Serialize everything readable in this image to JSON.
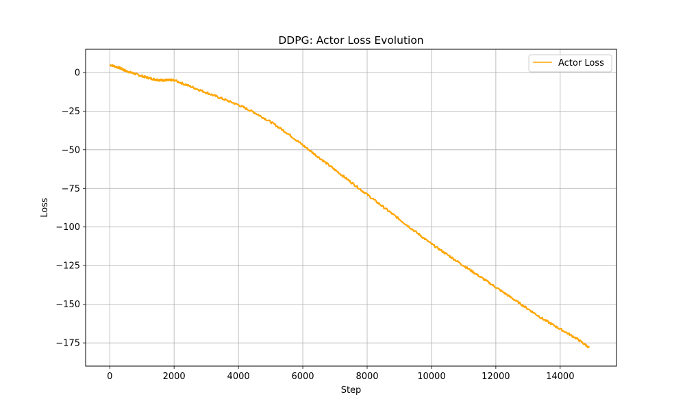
{
  "chart_data": {
    "type": "line",
    "title": "DDPG: Actor Loss Evolution",
    "xlabel": "Step",
    "ylabel": "Loss",
    "xlim": [
      -750,
      15750
    ],
    "ylim": [
      -190,
      15
    ],
    "x_ticks": [
      0,
      2000,
      4000,
      6000,
      8000,
      10000,
      12000,
      14000
    ],
    "y_ticks": [
      0,
      -25,
      -50,
      -75,
      -100,
      -125,
      -150,
      -175
    ],
    "x_tick_labels": [
      "0",
      "2000",
      "4000",
      "6000",
      "8000",
      "10000",
      "12000",
      "14000"
    ],
    "y_tick_labels": [
      "0",
      "−25",
      "−50",
      "−75",
      "−100",
      "−125",
      "−150",
      "−175"
    ],
    "grid": true,
    "legend_position": "upper right",
    "series": [
      {
        "name": "Actor Loss",
        "color": "#ffa500",
        "x": [
          0,
          300,
          500,
          800,
          1100,
          1400,
          1600,
          1800,
          2000,
          2500,
          3000,
          3500,
          4000,
          4500,
          5000,
          5500,
          6000,
          6500,
          7000,
          7500,
          8000,
          8500,
          9000,
          9500,
          10000,
          10500,
          11000,
          11500,
          12000,
          12500,
          13000,
          13500,
          14000,
          14500,
          14900
        ],
        "y": [
          5,
          3,
          1,
          -1,
          -3,
          -4.5,
          -5,
          -5,
          -5,
          -9,
          -13,
          -17,
          -21,
          -26,
          -32,
          -39,
          -47,
          -55,
          -63,
          -71,
          -79,
          -87,
          -95,
          -103,
          -111,
          -118,
          -125,
          -132,
          -139,
          -146,
          -153,
          -160,
          -166,
          -172,
          -178
        ]
      }
    ]
  }
}
